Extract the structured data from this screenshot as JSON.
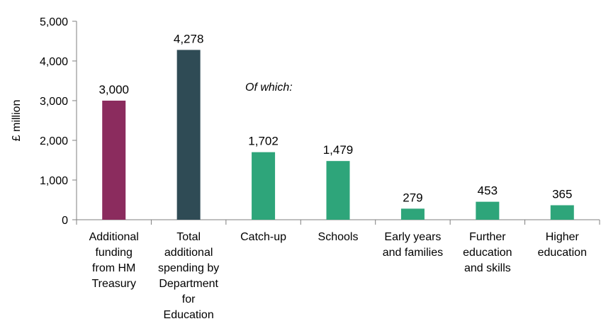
{
  "chart_data": {
    "type": "bar",
    "ylabel": "£ million",
    "xlabel": "",
    "ylim": [
      0,
      5000
    ],
    "yticks": [
      0,
      1000,
      2000,
      3000,
      4000,
      5000
    ],
    "ytick_labels": [
      "0",
      "1,000",
      "2,000",
      "3,000",
      "4,000",
      "5,000"
    ],
    "grid": false,
    "annotation": "Of which:",
    "categories": [
      [
        "Additional",
        "funding",
        "from HM",
        "Treasury"
      ],
      [
        "Total",
        "additional",
        "spending by",
        "Department",
        "for",
        "Education"
      ],
      [
        "Catch-up"
      ],
      [
        "Schools"
      ],
      [
        "Early years",
        "and families"
      ],
      [
        "Further",
        "education",
        "and skills"
      ],
      [
        "Higher",
        "education"
      ]
    ],
    "values": [
      3000,
      4278,
      1702,
      1479,
      279,
      453,
      365
    ],
    "value_labels": [
      "3,000",
      "4,278",
      "1,702",
      "1,479",
      "279",
      "453",
      "365"
    ],
    "colors": [
      "#8B2C5E",
      "#2F4B55",
      "#2EA57A",
      "#2EA57A",
      "#2EA57A",
      "#2EA57A",
      "#2EA57A"
    ]
  }
}
